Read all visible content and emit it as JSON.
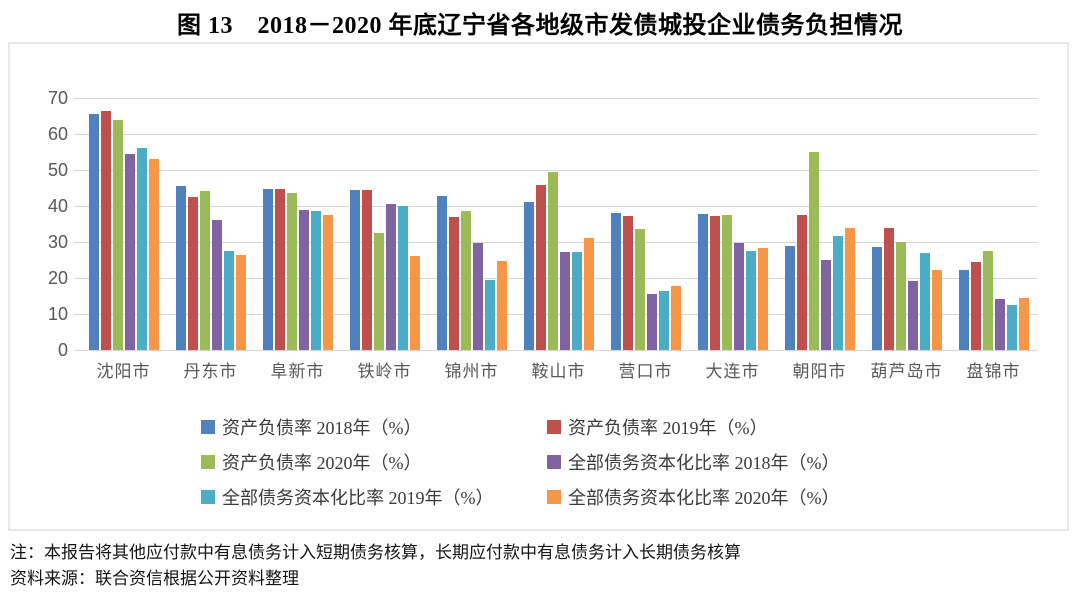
{
  "chart_data": {
    "type": "bar",
    "title": "图 13　2018－2020 年底辽宁省各地级市发债城投企业债务负担情况",
    "categories": [
      "沈阳市",
      "丹东市",
      "阜新市",
      "铁岭市",
      "锦州市",
      "鞍山市",
      "营口市",
      "大连市",
      "朝阳市",
      "葫芦岛市",
      "盘锦市"
    ],
    "series": [
      {
        "name": "资产负债率 2018年（%）",
        "color": "#4F81BD",
        "values": [
          65.5,
          45.5,
          44.7,
          44.5,
          42.8,
          41.0,
          38.2,
          37.9,
          29.0,
          28.5,
          22.1
        ]
      },
      {
        "name": "资产负债率 2019年（%）",
        "color": "#C0504D",
        "values": [
          66.5,
          42.6,
          44.7,
          44.5,
          37.0,
          45.8,
          37.1,
          37.1,
          37.6,
          33.8,
          24.4
        ]
      },
      {
        "name": "资产负债率 2020年（%）",
        "color": "#9BBB59",
        "values": [
          64.0,
          44.3,
          43.7,
          32.6,
          38.6,
          49.5,
          33.7,
          37.4,
          55.0,
          30.1,
          27.6
        ]
      },
      {
        "name": "全部债务资本化比率 2018年（%）",
        "color": "#8064A2",
        "values": [
          54.5,
          36.2,
          38.9,
          40.7,
          29.8,
          27.3,
          15.5,
          29.8,
          25.0,
          19.1,
          14.3
        ]
      },
      {
        "name": "全部债务资本化比率 2019年（%）",
        "color": "#4BACC6",
        "values": [
          56.0,
          27.6,
          38.5,
          39.9,
          19.4,
          27.2,
          16.5,
          27.4,
          31.8,
          26.9,
          12.6
        ]
      },
      {
        "name": "全部债务资本化比率 2020年（%）",
        "color": "#F79646",
        "values": [
          53.0,
          26.5,
          37.5,
          26.2,
          24.7,
          31.1,
          17.8,
          28.3,
          33.8,
          22.1,
          14.5
        ]
      }
    ],
    "ylim": [
      0,
      70
    ],
    "yticks": [
      70,
      60,
      50,
      40,
      30,
      20,
      10,
      0
    ],
    "grid": true,
    "gridline_color": "#d6d6d6",
    "legend_position": "bottom"
  },
  "footnotes": {
    "note": "注：本报告将其他应付款中有息债务计入短期债务核算，长期应付款中有息债务计入长期债务核算",
    "source": "资料来源：联合资信根据公开资料整理"
  }
}
